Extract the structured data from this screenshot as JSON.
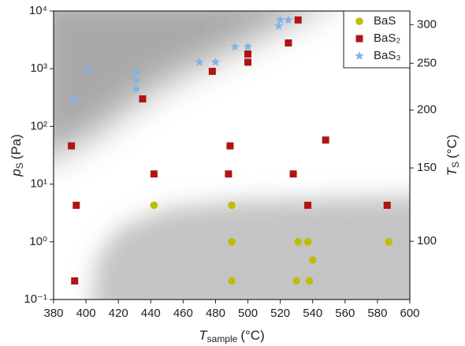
{
  "chart_data": {
    "type": "scatter",
    "x_label": {
      "main": "T",
      "sub": "sample",
      "unit": "(°C)"
    },
    "y_label": {
      "main": "p",
      "sub": "S",
      "unit": "(Pa)"
    },
    "y2_label": {
      "main": "T",
      "sub": "S",
      "unit": "(°C)"
    },
    "xlim": [
      380,
      600
    ],
    "xticks": [
      380,
      400,
      420,
      440,
      460,
      480,
      500,
      520,
      540,
      560,
      580,
      600
    ],
    "ylim": [
      0.1,
      10000
    ],
    "yscale": "log",
    "yticks": [
      {
        "value": 0.1,
        "label": "10⁻¹"
      },
      {
        "value": 1,
        "label": "10⁰"
      },
      {
        "value": 10,
        "label": "10¹"
      },
      {
        "value": 100,
        "label": "10²"
      },
      {
        "value": 1000,
        "label": "10³"
      },
      {
        "value": 10000,
        "label": "10⁴"
      }
    ],
    "y2lim": [
      68,
      320
    ],
    "y2scale": "inverse-kelvin",
    "y2ticks": [
      100,
      150,
      200,
      250,
      300
    ],
    "legend": "upper right",
    "series": [
      {
        "name": "BaS",
        "color": "#bdbd0a",
        "marker": "circle",
        "x": [
          442,
          490,
          490,
          490,
          531,
          537,
          540,
          530,
          538,
          587
        ],
        "values": [
          4.3,
          4.3,
          1,
          0.21,
          1,
          1,
          0.48,
          0.21,
          0.21,
          1
        ]
      },
      {
        "name": "BaS₂",
        "color": "#b01414",
        "marker": "square",
        "x": [
          391,
          394,
          393,
          435,
          442,
          478,
          489,
          488,
          500,
          500,
          525,
          531,
          528,
          537,
          548,
          586
        ],
        "values": [
          46,
          4.3,
          0.21,
          300,
          15,
          900,
          46,
          15,
          1800,
          1300,
          2800,
          7000,
          15,
          4.3,
          58,
          4.3
        ]
      },
      {
        "name": "BaS₃",
        "color": "#80b4ea",
        "marker": "star",
        "x": [
          393,
          402,
          431,
          431,
          431,
          470,
          480,
          492,
          500,
          519,
          520,
          525
        ],
        "values": [
          290,
          950,
          900,
          630,
          440,
          1300,
          1300,
          2400,
          2400,
          5500,
          7000,
          7000
        ]
      }
    ]
  }
}
